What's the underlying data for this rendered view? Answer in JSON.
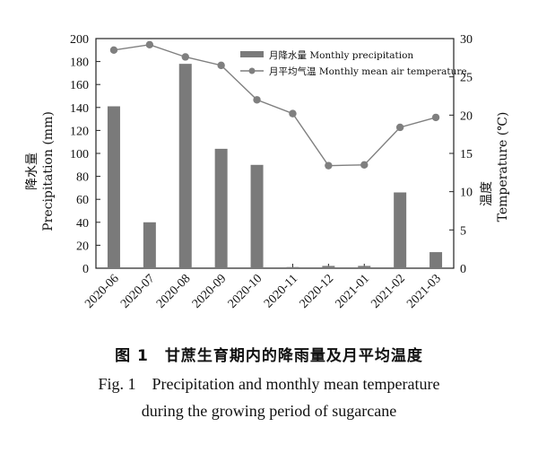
{
  "chart_data": {
    "type": "bar+line",
    "categories": [
      "2020-06",
      "2020-07",
      "2020-08",
      "2020-09",
      "2020-10",
      "2020-11",
      "2020-12",
      "2021-01",
      "2021-02",
      "2021-03"
    ],
    "series": [
      {
        "name": "月降水量 Monthly precipitation",
        "type": "bar",
        "axis": "left",
        "values": [
          141,
          40,
          178,
          104,
          90,
          1,
          2,
          2,
          66,
          14
        ],
        "color": "#7a7a7a"
      },
      {
        "name": "月平均气温 Monthly mean air temperature",
        "type": "line",
        "axis": "right",
        "values": [
          28.5,
          29.2,
          27.6,
          26.5,
          22.0,
          20.2,
          13.4,
          13.5,
          18.4,
          19.7
        ],
        "color": "#7f7f7f"
      }
    ],
    "y_left": {
      "label_zh": "降水量",
      "label_en": "Precipitation (mm)",
      "ylim": [
        0,
        200
      ],
      "ticks": [
        "0",
        "20",
        "40",
        "60",
        "80",
        "100",
        "120",
        "140",
        "160",
        "180",
        "200"
      ]
    },
    "y_right": {
      "label_zh": "温度",
      "label_en": "Temperature (℃)",
      "ylim": [
        0,
        30
      ],
      "ticks": [
        "0",
        "5",
        "10",
        "15",
        "20",
        "25",
        "30"
      ]
    },
    "legend": "top-right",
    "grid": false
  },
  "caption": {
    "zh_num": "图 1",
    "zh_text": "甘蔗生育期内的降雨量及月平均温度",
    "en_num": "Fig. 1",
    "en_line1": "Precipitation and monthly mean temperature",
    "en_line2": "during the growing period of sugarcane"
  }
}
